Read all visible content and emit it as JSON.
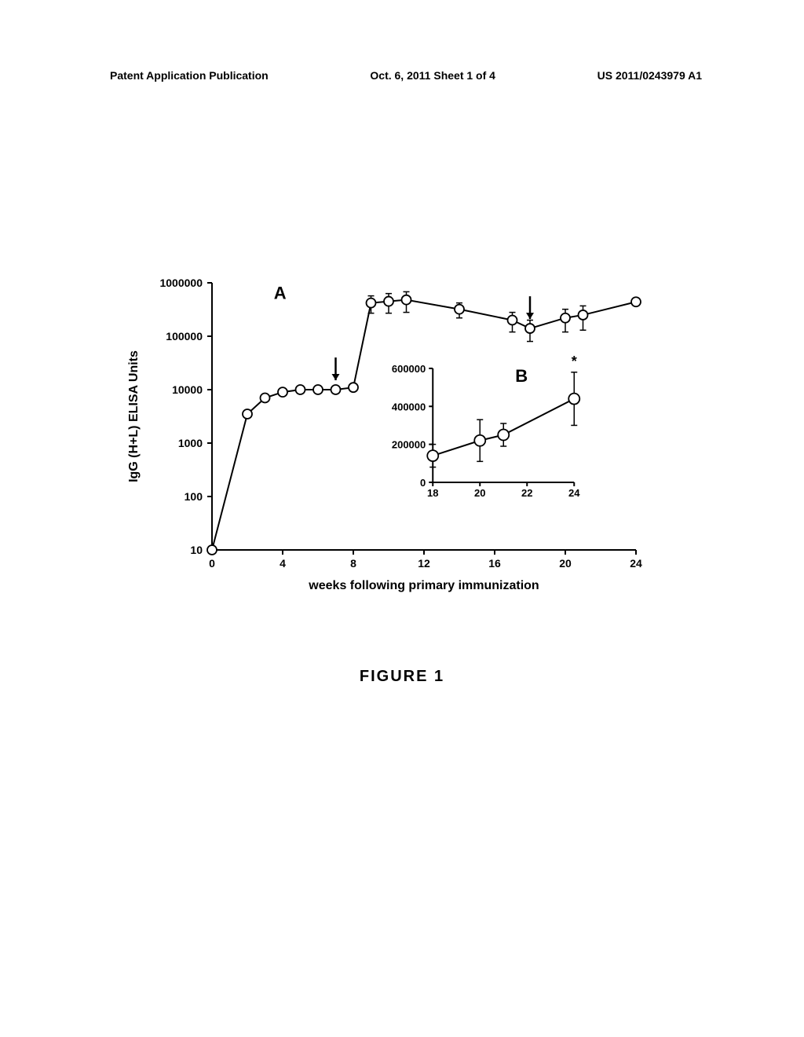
{
  "header": {
    "left": "Patent Application Publication",
    "center": "Oct. 6, 2011  Sheet 1 of 4",
    "right": "US 2011/0243979 A1"
  },
  "figure": {
    "caption": "FIGURE  1",
    "y_axis_label": "IgG (H+L) ELISA Units",
    "x_axis_label": "weeks following primary immunization",
    "panel_a_label": "A",
    "panel_b_label": "B",
    "main_chart": {
      "type": "line",
      "x_values": [
        0,
        2,
        3,
        4,
        5,
        6,
        7,
        8,
        9,
        10,
        11,
        14,
        17,
        18,
        20,
        21,
        24
      ],
      "y_values": [
        10,
        3500,
        7000,
        9000,
        10000,
        10000,
        10000,
        11000,
        420000,
        450000,
        480000,
        320000,
        200000,
        140000,
        220000,
        250000,
        440000
      ],
      "y_err": [
        0,
        0,
        0,
        0,
        0,
        0,
        0,
        0,
        150000,
        180000,
        200000,
        100000,
        80000,
        60000,
        100000,
        120000,
        0
      ],
      "arrows_x": [
        7,
        18
      ],
      "xlim": [
        0,
        24
      ],
      "x_ticks": [
        0,
        4,
        8,
        12,
        16,
        20,
        24
      ],
      "ylim": [
        10,
        1000000
      ],
      "y_ticks": [
        10,
        100,
        1000,
        10000,
        100000,
        1000000
      ],
      "y_tick_labels": [
        "10",
        "100",
        "1000",
        "10000",
        "100000",
        "1000000"
      ],
      "scale": "log",
      "line_color": "#000000",
      "marker_color": "#ffffff",
      "marker_stroke": "#000000",
      "line_width": 2,
      "marker_size": 6
    },
    "inset_chart": {
      "type": "line",
      "x_values": [
        18,
        20,
        21,
        24
      ],
      "y_values": [
        140000,
        220000,
        250000,
        440000
      ],
      "y_err": [
        60000,
        110000,
        60000,
        140000
      ],
      "xlim": [
        18,
        24
      ],
      "x_ticks": [
        18,
        20,
        22,
        24
      ],
      "ylim": [
        0,
        600000
      ],
      "y_ticks": [
        0,
        200000,
        400000,
        600000
      ],
      "y_tick_labels": [
        "0",
        "200000",
        "400000",
        "600000"
      ],
      "scale": "linear",
      "line_color": "#000000",
      "marker_color": "#ffffff",
      "marker_stroke": "#000000",
      "line_width": 2,
      "marker_size": 7,
      "asterisk": "*"
    },
    "style": {
      "background_color": "#ffffff",
      "axis_color": "#000000",
      "text_color": "#000000",
      "tick_fontsize": 14,
      "label_fontsize": 16,
      "panel_label_fontsize": 22
    }
  }
}
